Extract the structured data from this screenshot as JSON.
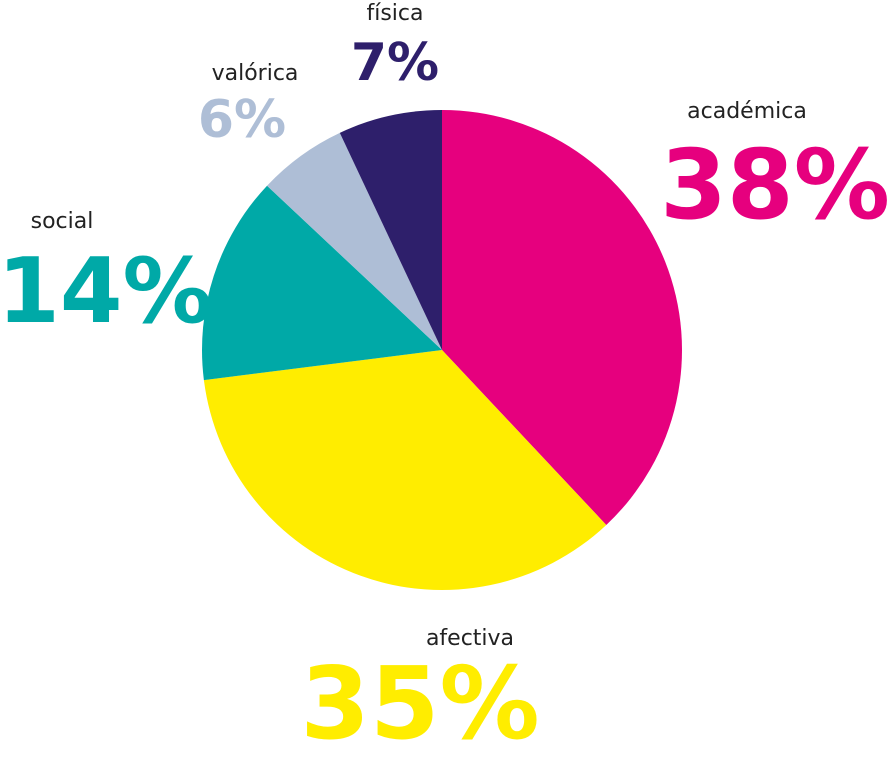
{
  "chart_data": {
    "type": "pie",
    "categories": [
      "académica",
      "afectiva",
      "social",
      "valórica",
      "física"
    ],
    "values": [
      38,
      35,
      14,
      6,
      7
    ],
    "value_labels": [
      "38%",
      "35%",
      "14%",
      "6%",
      "7%"
    ],
    "colors": [
      "#e6007e",
      "#ffed00",
      "#00a9a7",
      "#aebed6",
      "#2e1f6b"
    ]
  }
}
